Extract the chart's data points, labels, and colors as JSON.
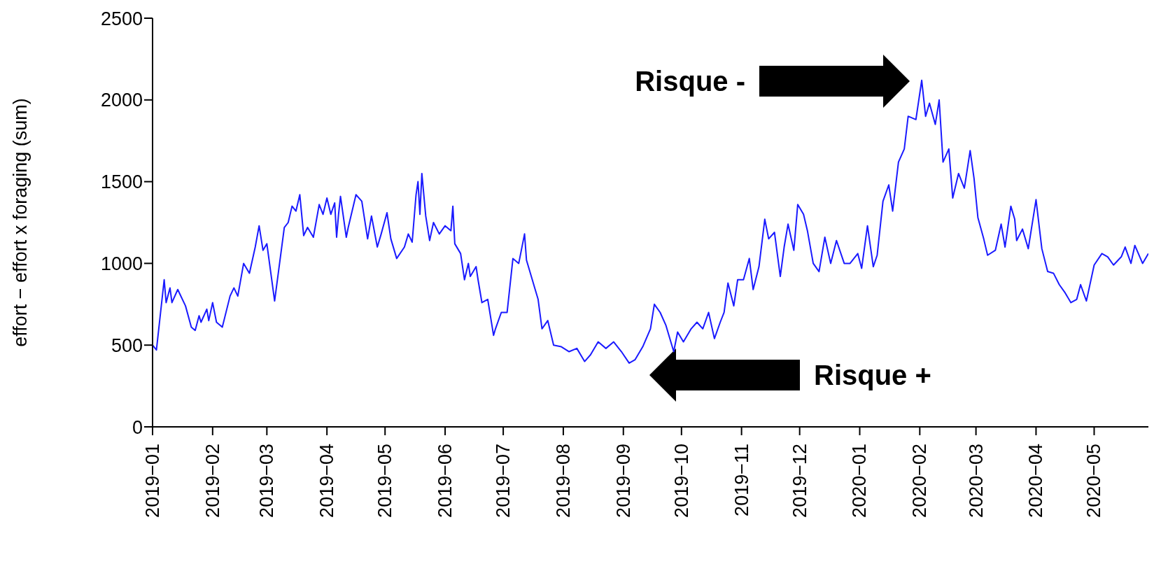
{
  "chart_data": {
    "type": "line",
    "ylabel": "effort − effort x foraging (sum)",
    "xlim": [
      "2019-01-01",
      "2020-05-29"
    ],
    "xticks": [
      {
        "value": "2019-01-01",
        "label": "2019−01"
      },
      {
        "value": "2019-02-01",
        "label": "2019−02"
      },
      {
        "value": "2019-03-01",
        "label": "2019−03"
      },
      {
        "value": "2019-04-01",
        "label": "2019−04"
      },
      {
        "value": "2019-05-01",
        "label": "2019−05"
      },
      {
        "value": "2019-06-01",
        "label": "2019−06"
      },
      {
        "value": "2019-07-01",
        "label": "2019−07"
      },
      {
        "value": "2019-08-01",
        "label": "2019−08"
      },
      {
        "value": "2019-09-01",
        "label": "2019−09"
      },
      {
        "value": "2019-10-01",
        "label": "2019−10"
      },
      {
        "value": "2019-11-01",
        "label": "2019−11"
      },
      {
        "value": "2019-12-01",
        "label": "2019−12"
      },
      {
        "value": "2020-01-01",
        "label": "2020−01"
      },
      {
        "value": "2020-02-01",
        "label": "2020−02"
      },
      {
        "value": "2020-03-01",
        "label": "2020−03"
      },
      {
        "value": "2020-04-01",
        "label": "2020−04"
      },
      {
        "value": "2020-05-01",
        "label": "2020−05"
      }
    ],
    "ylim": [
      0,
      2500
    ],
    "yticks": [
      0,
      500,
      1000,
      1500,
      2000,
      2500
    ],
    "grid": false,
    "legend": false,
    "marker": "none",
    "line_style": "solid",
    "x": [
      "2019-01-01",
      "2019-01-03",
      "2019-01-07",
      "2019-01-08",
      "2019-01-10",
      "2019-01-11",
      "2019-01-14",
      "2019-01-18",
      "2019-01-21",
      "2019-01-23",
      "2019-01-25",
      "2019-01-26",
      "2019-01-29",
      "2019-01-30",
      "2019-02-01",
      "2019-02-03",
      "2019-02-06",
      "2019-02-10",
      "2019-02-12",
      "2019-02-14",
      "2019-02-17",
      "2019-02-20",
      "2019-02-23",
      "2019-02-25",
      "2019-02-27",
      "2019-03-01",
      "2019-03-05",
      "2019-03-07",
      "2019-03-10",
      "2019-03-12",
      "2019-03-14",
      "2019-03-16",
      "2019-03-18",
      "2019-03-20",
      "2019-03-22",
      "2019-03-25",
      "2019-03-28",
      "2019-03-30",
      "2019-04-01",
      "2019-04-03",
      "2019-04-05",
      "2019-04-06",
      "2019-04-07",
      "2019-04-08",
      "2019-04-11",
      "2019-04-12",
      "2019-04-16",
      "2019-04-19",
      "2019-04-22",
      "2019-04-24",
      "2019-04-27",
      "2019-04-29",
      "2019-05-02",
      "2019-05-04",
      "2019-05-07",
      "2019-05-11",
      "2019-05-13",
      "2019-05-15",
      "2019-05-17",
      "2019-05-18",
      "2019-05-19",
      "2019-05-20",
      "2019-05-22",
      "2019-05-24",
      "2019-05-26",
      "2019-05-29",
      "2019-06-01",
      "2019-06-04",
      "2019-06-05",
      "2019-06-06",
      "2019-06-09",
      "2019-06-11",
      "2019-06-13",
      "2019-06-14",
      "2019-06-17",
      "2019-06-18",
      "2019-06-20",
      "2019-06-23",
      "2019-06-26",
      "2019-06-27",
      "2019-06-30",
      "2019-07-03",
      "2019-07-06",
      "2019-07-09",
      "2019-07-12",
      "2019-07-13",
      "2019-07-16",
      "2019-07-19",
      "2019-07-21",
      "2019-07-24",
      "2019-07-27",
      "2019-07-31",
      "2019-08-04",
      "2019-08-08",
      "2019-08-12",
      "2019-08-15",
      "2019-08-19",
      "2019-08-23",
      "2019-08-27",
      "2019-08-31",
      "2019-09-04",
      "2019-09-07",
      "2019-09-11",
      "2019-09-15",
      "2019-09-17",
      "2019-09-20",
      "2019-09-23",
      "2019-09-27",
      "2019-09-29",
      "2019-10-02",
      "2019-10-06",
      "2019-10-09",
      "2019-10-12",
      "2019-10-15",
      "2019-10-18",
      "2019-10-21",
      "2019-10-23",
      "2019-10-25",
      "2019-10-28",
      "2019-10-30",
      "2019-11-02",
      "2019-11-05",
      "2019-11-07",
      "2019-11-10",
      "2019-11-13",
      "2019-11-15",
      "2019-11-18",
      "2019-11-21",
      "2019-11-23",
      "2019-11-25",
      "2019-11-28",
      "2019-11-30",
      "2019-12-03",
      "2019-12-05",
      "2019-12-08",
      "2019-12-11",
      "2019-12-14",
      "2019-12-17",
      "2019-12-20",
      "2019-12-24",
      "2019-12-27",
      "2019-12-31",
      "2020-01-02",
      "2020-01-05",
      "2020-01-08",
      "2020-01-10",
      "2020-01-13",
      "2020-01-16",
      "2020-01-18",
      "2020-01-21",
      "2020-01-24",
      "2020-01-26",
      "2020-01-30",
      "2020-02-02",
      "2020-02-04",
      "2020-02-06",
      "2020-02-09",
      "2020-02-11",
      "2020-02-13",
      "2020-02-16",
      "2020-02-18",
      "2020-02-21",
      "2020-02-24",
      "2020-02-27",
      "2020-02-29",
      "2020-03-02",
      "2020-03-05",
      "2020-03-07",
      "2020-03-11",
      "2020-03-14",
      "2020-03-16",
      "2020-03-19",
      "2020-03-21",
      "2020-03-22",
      "2020-03-25",
      "2020-03-28",
      "2020-04-01",
      "2020-04-04",
      "2020-04-07",
      "2020-04-10",
      "2020-04-13",
      "2020-04-16",
      "2020-04-19",
      "2020-04-22",
      "2020-04-24",
      "2020-04-27",
      "2020-05-01",
      "2020-05-05",
      "2020-05-08",
      "2020-05-11",
      "2020-05-15",
      "2020-05-17",
      "2020-05-20",
      "2020-05-22",
      "2020-05-26",
      "2020-05-29"
    ],
    "series": [
      {
        "color": "#1a1aff",
        "values": [
          500,
          470,
          900,
          760,
          850,
          760,
          840,
          740,
          610,
          590,
          680,
          640,
          720,
          650,
          760,
          640,
          610,
          800,
          850,
          800,
          1000,
          940,
          1100,
          1230,
          1080,
          1120,
          770,
          950,
          1220,
          1250,
          1350,
          1320,
          1420,
          1170,
          1220,
          1160,
          1360,
          1300,
          1400,
          1300,
          1370,
          1160,
          1300,
          1410,
          1160,
          1220,
          1420,
          1380,
          1150,
          1290,
          1100,
          1180,
          1310,
          1150,
          1030,
          1100,
          1180,
          1130,
          1420,
          1500,
          1300,
          1550,
          1290,
          1140,
          1250,
          1180,
          1230,
          1200,
          1350,
          1120,
          1060,
          900,
          1000,
          920,
          980,
          900,
          760,
          780,
          560,
          600,
          700,
          700,
          1030,
          1000,
          1180,
          1020,
          900,
          780,
          600,
          650,
          500,
          490,
          460,
          480,
          400,
          440,
          520,
          480,
          520,
          460,
          390,
          410,
          490,
          600,
          750,
          700,
          620,
          460,
          580,
          520,
          600,
          640,
          600,
          700,
          540,
          640,
          700,
          880,
          740,
          900,
          900,
          1030,
          840,
          980,
          1270,
          1150,
          1190,
          920,
          1100,
          1240,
          1080,
          1360,
          1300,
          1200,
          1000,
          950,
          1160,
          1000,
          1140,
          1000,
          1000,
          1060,
          970,
          1230,
          980,
          1050,
          1380,
          1480,
          1320,
          1620,
          1700,
          1900,
          1880,
          2120,
          1900,
          1980,
          1850,
          2000,
          1620,
          1700,
          1400,
          1550,
          1460,
          1690,
          1520,
          1280,
          1150,
          1050,
          1080,
          1240,
          1100,
          1350,
          1270,
          1140,
          1210,
          1090,
          1390,
          1090,
          950,
          940,
          870,
          820,
          760,
          780,
          870,
          770,
          990,
          1060,
          1040,
          990,
          1040,
          1100,
          1000,
          1110,
          1000,
          1060
        ]
      }
    ],
    "annotations": [
      "Risque -",
      "Risque +"
    ]
  }
}
